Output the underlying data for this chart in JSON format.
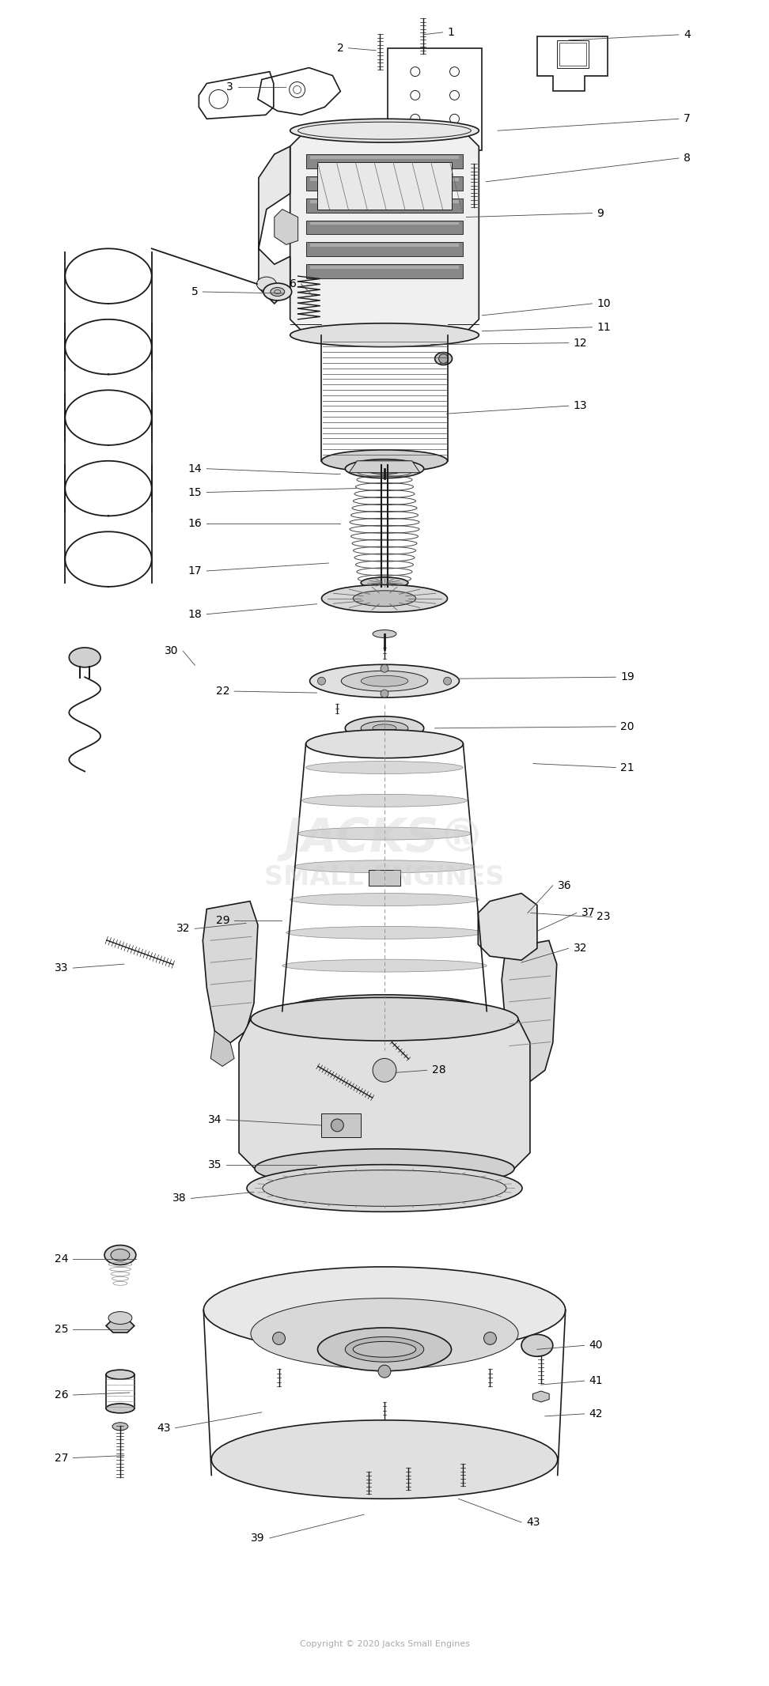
{
  "background_color": "#ffffff",
  "line_color": "#1a1a1a",
  "fig_width": 9.72,
  "fig_height": 21.32,
  "dpi": 100
}
